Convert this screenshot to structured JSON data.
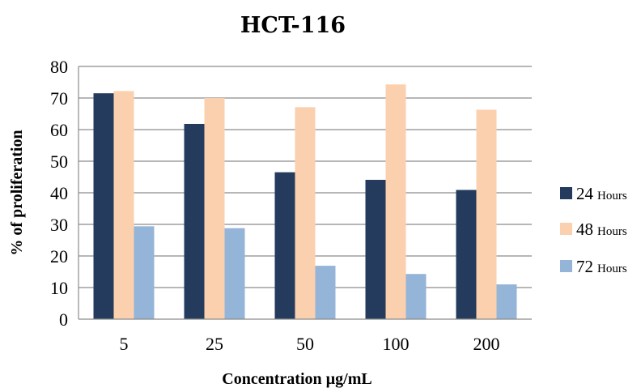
{
  "chart_data": {
    "type": "bar",
    "title": "HCT-116",
    "xlabel": "Concentration µg/mL",
    "ylabel": "% of proliferation",
    "categories": [
      "5",
      "25",
      "50",
      "100",
      "200"
    ],
    "ylim": [
      0,
      80
    ],
    "yticks": [
      0,
      10,
      20,
      30,
      40,
      50,
      60,
      70,
      80
    ],
    "grid": true,
    "legend_position": "right",
    "series": [
      {
        "name": "24 Hours",
        "legend_value": "24",
        "legend_unit": "Hours",
        "color": "#243b5e",
        "values": [
          71.5,
          61.8,
          46.5,
          44.1,
          40.9
        ]
      },
      {
        "name": "48 Hours",
        "legend_value": "48",
        "legend_unit": "Hours",
        "color": "#fbd0ae",
        "values": [
          72.2,
          70.0,
          67.1,
          74.3,
          66.3
        ]
      },
      {
        "name": "72 Hours",
        "legend_value": "72",
        "legend_unit": "Hours",
        "color": "#94b4d8",
        "values": [
          29.4,
          28.8,
          16.9,
          14.3,
          11.0
        ]
      }
    ]
  }
}
